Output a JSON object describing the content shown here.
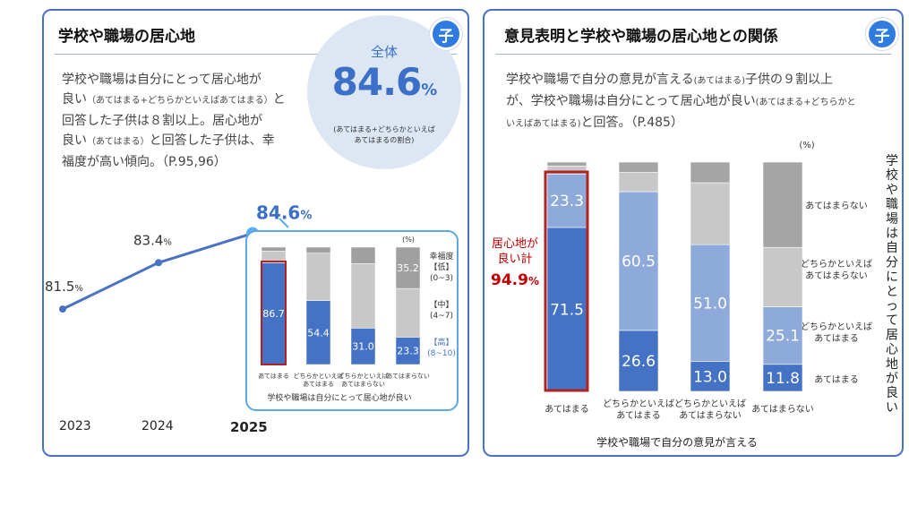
{
  "left": {
    "title": "学校や職場の居心地",
    "badge": "子",
    "paragraph": {
      "l1": "学校や職場は自分にとって居心地が",
      "l2a": "良い",
      "l2b": "（あてはまる+どちらかといえばあてはまる）",
      "l2c": "と",
      "l3": "回答した子供は８割以上。居心地が",
      "l4a": "良い",
      "l4b": "（あてはまる）",
      "l4c": "と回答した子供は、幸",
      "l5": "福度が高い傾向。（P.95,96）"
    },
    "circle": {
      "title": "全体",
      "value": "84.6",
      "unit": "%",
      "note_l1": "(あてはまる+どちらかといえば",
      "note_l2": "あてはまるの割合)"
    }
  },
  "right": {
    "title": "意見表明と学校や職場の居心地との関係",
    "badge": "子",
    "paragraph": {
      "l1a": "学校や職場で自分の意見が言える",
      "l1b": "(あてはまる)",
      "l1c": "子供の９割以上",
      "l2a": "が、学校や職場は自分にとって居心地が良い",
      "l2b": "(あてはまる+どちらかと",
      "l3a": "いえばあてはまる)",
      "l3b": "と回答。（P.485）"
    }
  },
  "chart_data": [
    {
      "type": "line",
      "title": "",
      "x": [
        "2023",
        "2024",
        "2025"
      ],
      "values": [
        81.5,
        83.4,
        84.6
      ],
      "labels": [
        "81.5",
        "83.4",
        "84.6"
      ],
      "unit": "%",
      "ylim": [
        80,
        85.5
      ]
    },
    {
      "type": "bar",
      "stacked": true,
      "xlabel": "学校や職場は自分にとって居心地が良い",
      "unit": "(%)",
      "categories": [
        "あてはまる",
        "どちらかといえば|あてはまる",
        "どちらかといえば|あてはまらない",
        "あてはまらない"
      ],
      "series": [
        {
          "name": "【高】(8~10)",
          "values": [
            86.7,
            54.4,
            31.0,
            23.3
          ],
          "labels": [
            "86.7",
            "54.4",
            "31.0",
            "23.3"
          ]
        },
        {
          "name": "【中】(4~7)",
          "values": [
            10.0,
            40.6,
            55.0,
            41.5
          ]
        },
        {
          "name": "幸福度【低】(0~3)",
          "values": [
            3.3,
            5.0,
            14.0,
            35.2
          ],
          "labels": [
            "",
            "",
            "",
            "35.2"
          ]
        }
      ],
      "legend": {
        "low_l1": "幸福度",
        "low_l2": "【低】",
        "low_l3": "(0~3)",
        "mid_l1": "【中】",
        "mid_l2": "(4~7)",
        "high_l1": "【高】",
        "high_l2": "(8~10)"
      }
    },
    {
      "type": "bar",
      "stacked": true,
      "xlabel": "学校や職場で自分の意見が言える",
      "ylabel": "学校や職場は自分にとって居心地が良い",
      "unit": "(%)",
      "categories": [
        "あてはまる",
        "どちらかといえば|あてはまる",
        "どちらかといえば|あてはまらない",
        "あてはまらない"
      ],
      "series": [
        {
          "name": "あてはまる",
          "values": [
            71.5,
            26.6,
            13.0,
            11.8
          ],
          "labels": [
            "71.5",
            "26.6",
            "13.0",
            "11.8"
          ]
        },
        {
          "name": "どちらかといえば|あてはまる",
          "values": [
            23.3,
            60.5,
            51.0,
            25.1
          ],
          "labels": [
            "23.3",
            "60.5",
            "51.0",
            "25.1"
          ]
        },
        {
          "name": "どちらかといえば|あてはまらない",
          "values": [
            3.5,
            8.4,
            27.0,
            25.9
          ]
        },
        {
          "name": "あてはまらない",
          "values": [
            1.7,
            4.5,
            9.0,
            37.2
          ]
        }
      ],
      "highlight": {
        "l1": "居心地が",
        "l2": "良い計",
        "value": "94.9",
        "unit": "%"
      }
    }
  ]
}
